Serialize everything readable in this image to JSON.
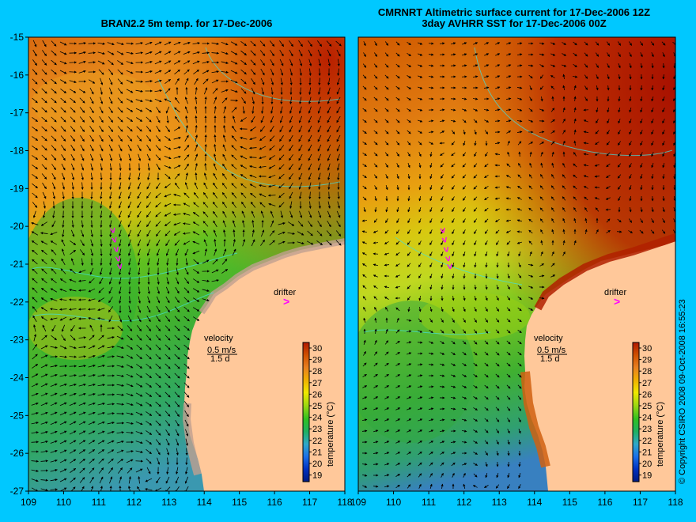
{
  "panels": [
    {
      "id": "left",
      "title": "BRAN2.2 5m temp. for 17-Dec-2006",
      "subtitle": ""
    },
    {
      "id": "right",
      "title": "CMRNRT Altimetric surface current for 17-Dec-2006 12Z",
      "subtitle": "3day AVHRR SST for 17-Dec-2006 00Z"
    }
  ],
  "axes": {
    "x_ticks": [
      "109",
      "110",
      "111",
      "112",
      "113",
      "114",
      "115",
      "116",
      "117",
      "118"
    ],
    "y_ticks": [
      "-15",
      "-16",
      "-17",
      "-18",
      "-19",
      "-20",
      "-21",
      "-22",
      "-23",
      "-24",
      "-25",
      "-26",
      "-27"
    ],
    "lon_range": [
      109,
      118
    ],
    "lat_range": [
      -27,
      -15
    ]
  },
  "legend": {
    "velocity_label": "velocity",
    "velocity_scale": "0.5 m/s",
    "velocity_time": "1.5 d",
    "drifter_label": "drifter",
    "drifter_symbol": ">",
    "colorbar_title": "temperature (°C)",
    "colorbar_ticks": [
      "30",
      "29",
      "28",
      "27",
      "26",
      "25",
      "24",
      "23",
      "22",
      "21",
      "20",
      "19"
    ]
  },
  "copyright": "© Copyright CSIRO 2008   09-Oct-2008 16:55:23",
  "colors": {
    "background": "#00c8ff",
    "land": "#ffc89a",
    "coast_contour": "#40e0e0",
    "drifter": "#ff00ff"
  },
  "drifter_track": [
    [
      111.4,
      -20.1
    ],
    [
      111.45,
      -20.35
    ],
    [
      111.5,
      -20.6
    ],
    [
      111.55,
      -20.85
    ],
    [
      111.6,
      -21.05
    ]
  ]
}
